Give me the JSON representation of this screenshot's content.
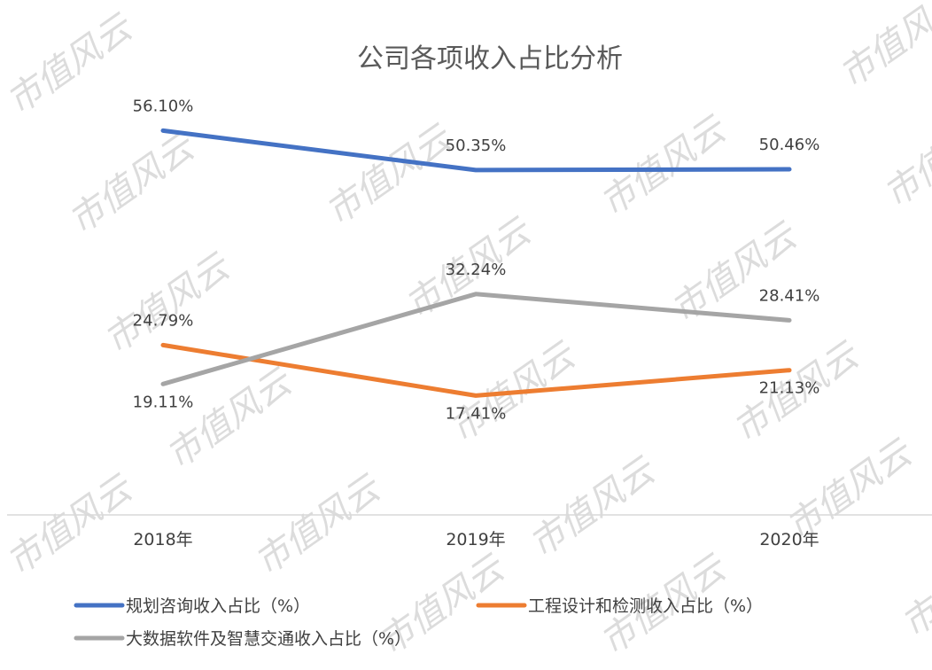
{
  "chart_data": {
    "type": "line",
    "title": "公司各项收入占比分析",
    "categories": [
      "2018年",
      "2019年",
      "2020年"
    ],
    "ylim": [
      0,
      70
    ],
    "grid": false,
    "legend_position": "bottom",
    "watermark": "市值风云",
    "series": [
      {
        "name": "规划咨询收入占比（%）",
        "color": "#4472C4",
        "values": [
          56.1,
          50.35,
          50.46
        ],
        "labels": [
          "56.10%",
          "50.35%",
          "50.46%"
        ]
      },
      {
        "name": "工程设计和检测收入占比（%）",
        "color": "#ED7D31",
        "values": [
          24.79,
          17.41,
          21.13
        ],
        "labels": [
          "24.79%",
          "17.41%",
          "21.13%"
        ]
      },
      {
        "name": "大数据软件及智慧交通收入占比（%）",
        "color": "#A5A5A5",
        "values": [
          19.11,
          32.24,
          28.41
        ],
        "labels": [
          "19.11%",
          "32.24%",
          "28.41%"
        ]
      }
    ]
  }
}
